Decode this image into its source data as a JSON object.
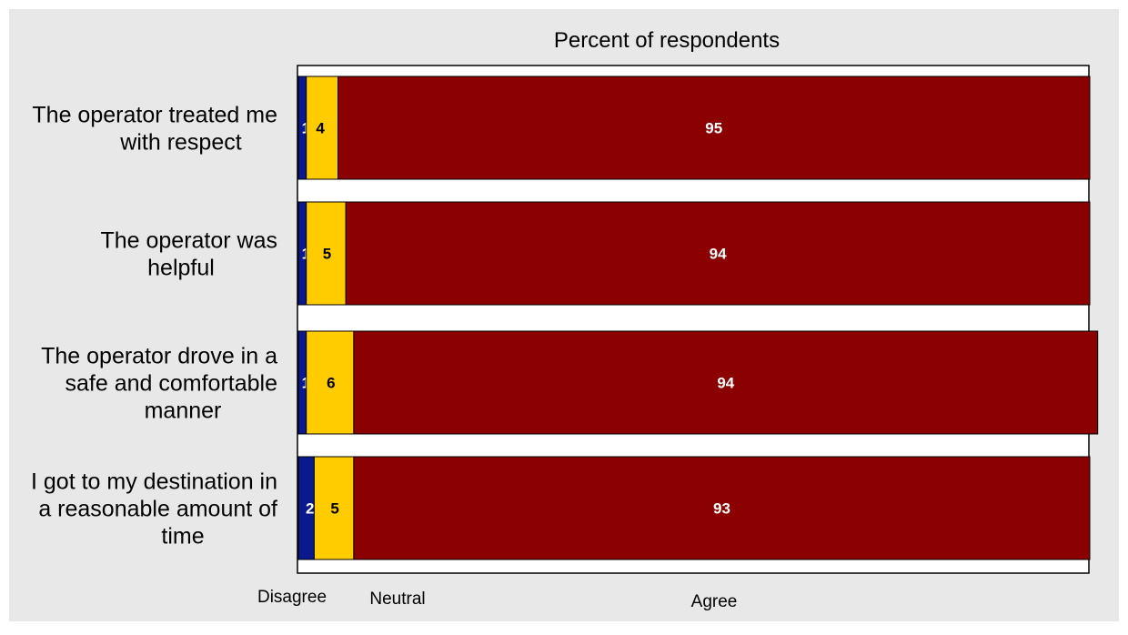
{
  "chart_data": {
    "type": "bar",
    "orientation": "horizontal",
    "stacked": true,
    "title": "Percent of respondents",
    "categories": [
      "The operator treated me with respect",
      "The operator was helpful",
      "The operator drove in a safe and comfortable manner",
      "I got to my destination in a reasonable amount of time"
    ],
    "series": [
      {
        "name": "Disagree",
        "values": [
          1,
          1,
          1,
          2
        ],
        "color": "#0a1a8c",
        "label_color": "#ffffff"
      },
      {
        "name": "Neutral",
        "values": [
          4,
          5,
          6,
          5
        ],
        "color": "#ffcc00",
        "label_color": "#000000"
      },
      {
        "name": "Agree",
        "values": [
          95,
          94,
          94,
          93
        ],
        "color": "#8b0000",
        "label_color": "#ffffff"
      }
    ],
    "xlim": [
      0,
      100
    ],
    "grid": false,
    "legend": "bottom",
    "colors": {
      "background": "#e8e8e8",
      "plot_background": "#ffffff"
    }
  }
}
